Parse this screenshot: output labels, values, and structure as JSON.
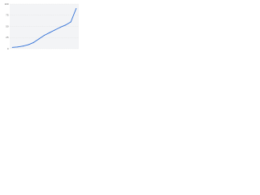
{
  "chart_data": {
    "type": "line",
    "categories": [
      null,
      null,
      null,
      null,
      null,
      null,
      null,
      null,
      null,
      null,
      null,
      null,
      null
    ],
    "series": [
      {
        "name": null,
        "color": "#2f6fd6",
        "values": [
          3,
          4,
          6,
          9,
          14,
          22,
          30,
          36,
          42,
          48,
          53,
          60,
          90
        ]
      }
    ],
    "ylim": [
      0,
      100
    ],
    "yticks": [
      0,
      25,
      50,
      75,
      100
    ],
    "grid": true
  }
}
